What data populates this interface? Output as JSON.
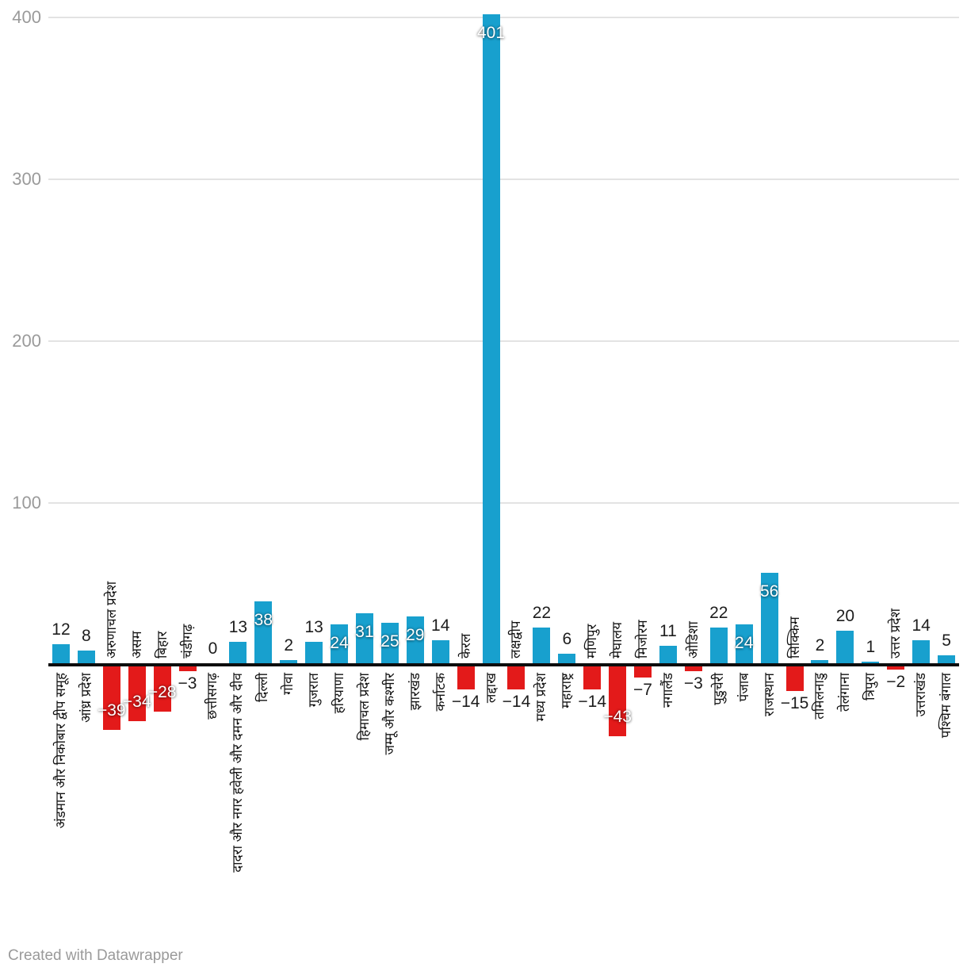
{
  "chart_data": {
    "type": "bar",
    "title": "",
    "xlabel": "",
    "ylabel": "",
    "grid": true,
    "legend_position": "none",
    "ylim": [
      -50,
      410
    ],
    "yticks": [
      100,
      200,
      300,
      400
    ],
    "positive_color": "#18a0ce",
    "negative_color": "#e31a1a",
    "categories": [
      "अंडमान और निकोबार द्वीप समूह",
      "आंध्र प्रदेश",
      "अरुणाचल प्रदेश",
      "असम",
      "बिहार",
      "चंडीगढ़",
      "छत्तीसगढ़",
      "दादरा और नगर हवेली और दमन और दीव",
      "दिल्ली",
      "गोवा",
      "गुजरात",
      "हरियाणा",
      "हिमाचल प्रदेश",
      "जम्मू और कश्मीर",
      "झारखंड",
      "कर्नाटक",
      "केरल",
      "लद्दाख",
      "लक्षद्वीप",
      "मध्य प्रदेश",
      "महाराष्ट्र",
      "मणिपुर",
      "मेघालय",
      "मिजोरम",
      "नगालैंड",
      "ओडिशा",
      "पुडुचेरी",
      "पंजाब",
      "राजस्थान",
      "सिक्किम",
      "तमिलनाडु",
      "तेलंगाना",
      "त्रिपुरा",
      "उत्तर प्रदेश",
      "उत्तराखंड",
      "पश्चिम बंगाल"
    ],
    "values": [
      12,
      8,
      -39,
      -34,
      -28,
      -3,
      0,
      13,
      38,
      2,
      13,
      24,
      31,
      25,
      29,
      14,
      -14,
      401,
      -14,
      22,
      6,
      -14,
      -43,
      -7,
      11,
      -3,
      22,
      24,
      56,
      -15,
      2,
      20,
      1,
      -2,
      14,
      5
    ]
  },
  "footer": {
    "credit": "Created with Datawrapper"
  }
}
